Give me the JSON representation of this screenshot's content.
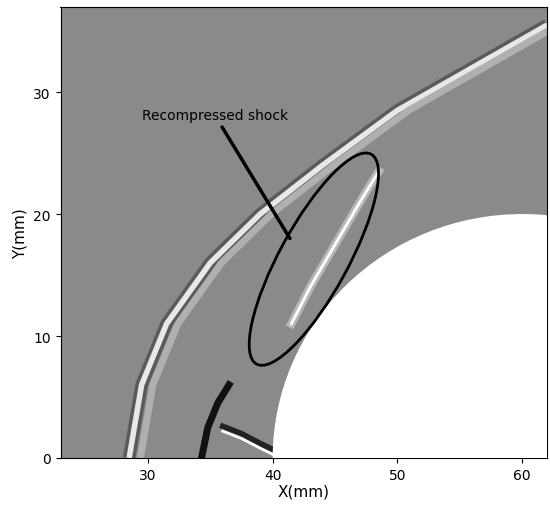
{
  "chart_data": {
    "type": "field",
    "xlabel": "X(mm)",
    "ylabel": "Y(mm)",
    "xlim": [
      23,
      62
    ],
    "ylim": [
      0,
      37
    ],
    "xticks": [
      30,
      40,
      50,
      60
    ],
    "yticks": [
      0,
      10,
      20,
      30
    ],
    "body": {
      "center": [
        60,
        0
      ],
      "radius": 20
    },
    "bow_shock": {
      "x": [
        28.5,
        29.5,
        31.5,
        35,
        39,
        44,
        50,
        56,
        62
      ],
      "y": [
        0,
        6,
        11,
        16,
        20,
        24,
        28.5,
        32,
        35.5
      ]
    },
    "recompressed_shock": {
      "x": [
        41.5,
        43,
        45,
        47,
        48.5
      ],
      "y": [
        11,
        14,
        17.5,
        21,
        23.5
      ]
    },
    "reflected_shock": {
      "x": [
        34.3,
        34.8,
        35.6,
        36.5
      ],
      "y": [
        0,
        2.5,
        4.5,
        6
      ]
    },
    "slip_line": {
      "x": [
        36,
        37.5,
        39,
        40.2
      ],
      "y": [
        2.6,
        2,
        1.2,
        0.6
      ]
    },
    "highlight": {
      "center": [
        43.3,
        16.3
      ],
      "width": 19.5,
      "height": 5.5,
      "angle": 62
    },
    "annotations": [
      {
        "text": "Recompressed shock",
        "xy": [
          41.5,
          17.8
        ],
        "xytext": [
          29.5,
          27.8
        ]
      }
    ]
  }
}
